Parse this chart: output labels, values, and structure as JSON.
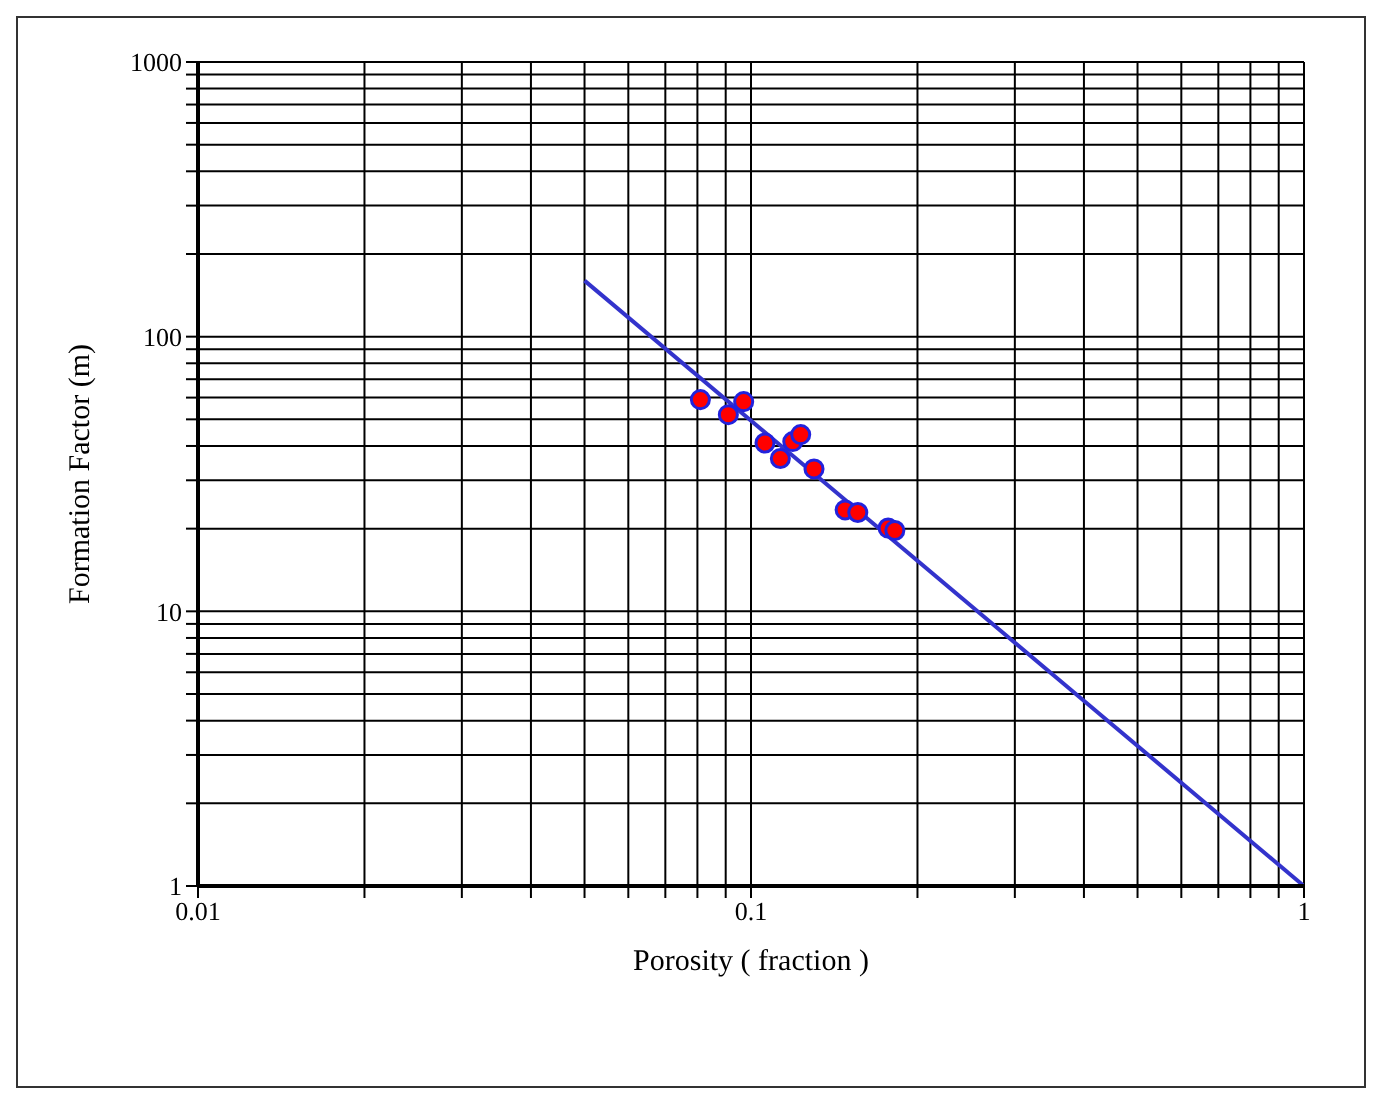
{
  "chart_data": {
    "type": "scatter",
    "xlabel": "Porosity ( fraction )",
    "ylabel": "Formation  Factor (m)",
    "log": "xy",
    "grid": true,
    "xlim": [
      0.01,
      1
    ],
    "ylim": [
      1,
      1000
    ],
    "xticks": [
      0.01,
      {
        "value": 0.02,
        "label": null
      },
      {
        "value": 0.03,
        "label": null
      },
      {
        "value": 0.04,
        "label": null
      },
      {
        "value": 0.05,
        "label": null
      },
      {
        "value": 0.06,
        "label": null
      },
      {
        "value": 0.07,
        "label": null
      },
      {
        "value": 0.08,
        "label": null
      },
      {
        "value": 0.09,
        "label": null
      },
      0.1,
      {
        "value": 0.2,
        "label": null
      },
      {
        "value": 0.3,
        "label": null
      },
      {
        "value": 0.4,
        "label": null
      },
      {
        "value": 0.5,
        "label": null
      },
      {
        "value": 0.6,
        "label": null
      },
      {
        "value": 0.7,
        "label": null
      },
      {
        "value": 0.8,
        "label": null
      },
      {
        "value": 0.9,
        "label": null
      },
      1
    ],
    "yticks": [
      1,
      {
        "value": 2,
        "label": null
      },
      {
        "value": 3,
        "label": null
      },
      {
        "value": 4,
        "label": null
      },
      {
        "value": 5,
        "label": null
      },
      {
        "value": 6,
        "label": null
      },
      {
        "value": 7,
        "label": null
      },
      {
        "value": 8,
        "label": null
      },
      {
        "value": 9,
        "label": null
      },
      10,
      {
        "value": 20,
        "label": null
      },
      {
        "value": 30,
        "label": null
      },
      {
        "value": 40,
        "label": null
      },
      {
        "value": 50,
        "label": null
      },
      {
        "value": 60,
        "label": null
      },
      {
        "value": 70,
        "label": null
      },
      {
        "value": 80,
        "label": null
      },
      {
        "value": 90,
        "label": null
      },
      100,
      {
        "value": 200,
        "label": null
      },
      {
        "value": 300,
        "label": null
      },
      {
        "value": 400,
        "label": null
      },
      {
        "value": 500,
        "label": null
      },
      {
        "value": 600,
        "label": null
      },
      {
        "value": 700,
        "label": null
      },
      {
        "value": 800,
        "label": null
      },
      {
        "value": 900,
        "label": null
      },
      1000
    ],
    "series": [
      {
        "marker": "circle",
        "color": "#ff0000",
        "x": [
          0.081,
          0.091,
          0.097,
          0.106,
          0.113,
          0.119,
          0.123,
          0.13,
          0.148,
          0.156,
          0.177,
          0.182
        ],
        "values": [
          59,
          52,
          58,
          41,
          36,
          41.5,
          44,
          33,
          23.4,
          22.9,
          20.1,
          19.7
        ]
      },
      {
        "type": "line",
        "color": "#3333cc",
        "x": [
          0.05,
          1
        ],
        "values": [
          160,
          1
        ]
      }
    ]
  }
}
